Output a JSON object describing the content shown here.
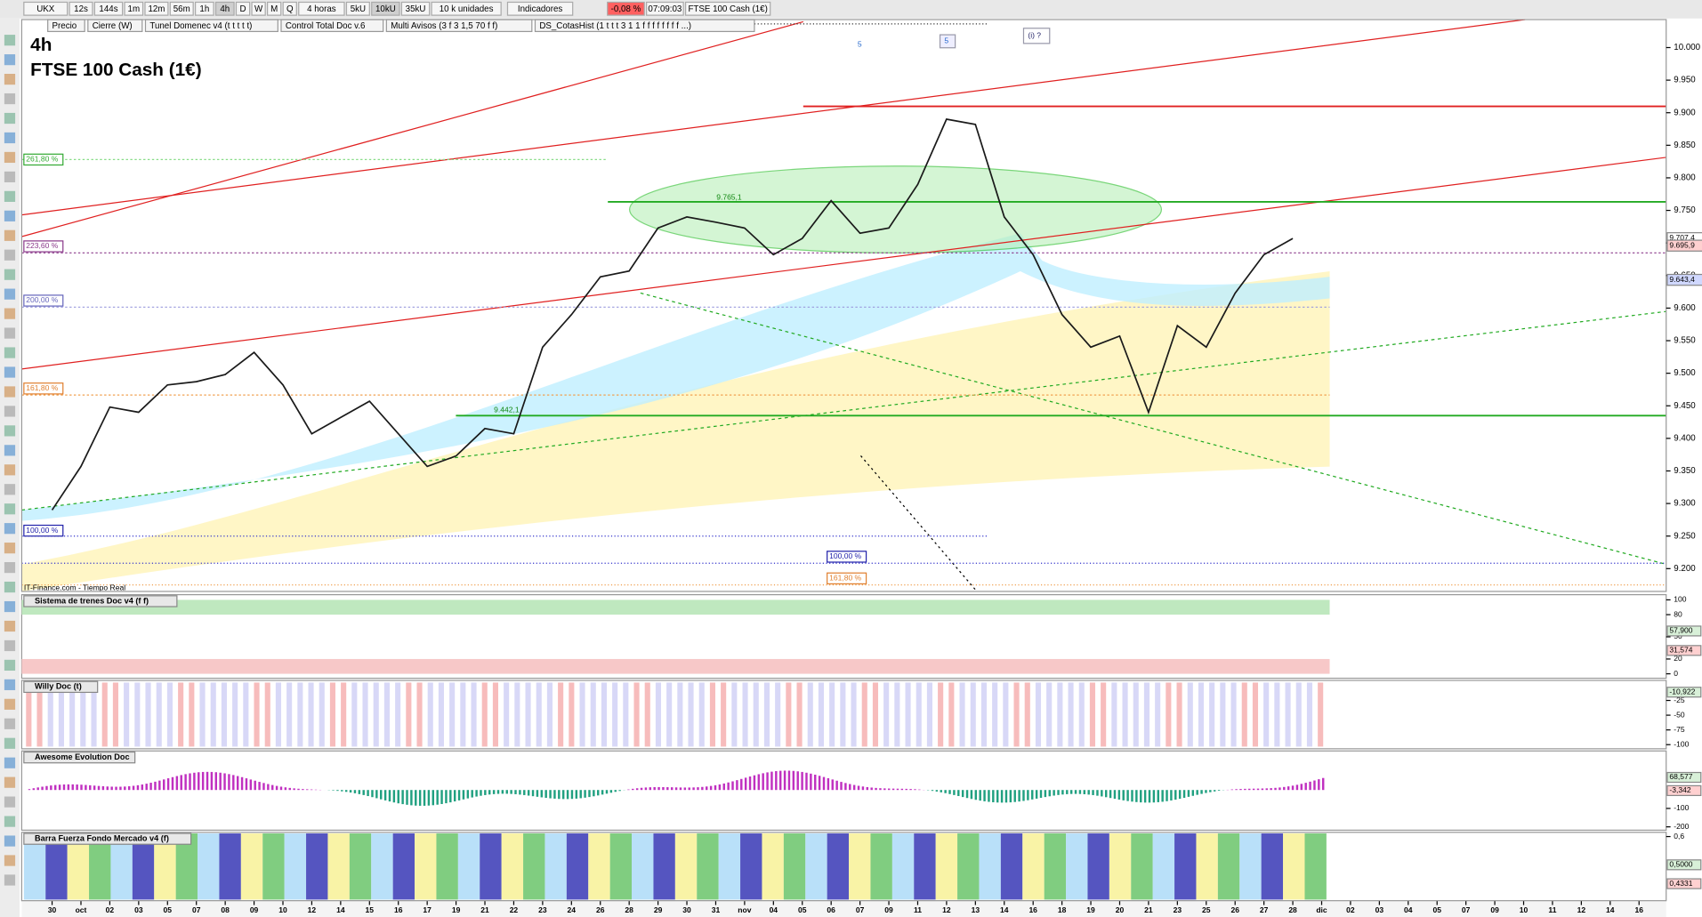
{
  "toolbar": {
    "symbol": "UKX",
    "timeframes": [
      "12s",
      "144s",
      "1m",
      "12m",
      "56m",
      "1h",
      "4h",
      "D",
      "W",
      "M",
      "Q"
    ],
    "period": "4 horas",
    "units": [
      "5kU",
      "10kU",
      "35kU"
    ],
    "unit_select": "10 k unidades",
    "indicators": "Indicadores",
    "change": "-0,08 %",
    "time": "07:09:03",
    "instrument": "FTSE 100 Cash (1€)"
  },
  "indicator_tabs": [
    "Precio",
    "Cierre (W)",
    "Tunel Domenec v4 (t t t t t)",
    "Control Total Doc v.6",
    "Multi Avisos (3 f 3 1,5 70 f f)",
    "DS_CotasHist (1 t t t 3 1 1 f f f f f f f f ...)"
  ],
  "chart_data": {
    "type": "line",
    "timeframe": "4h",
    "title": "FTSE 100 Cash (1€)",
    "source": "IT-Finance.com - Tiempo Real",
    "categories": [
      "30",
      "oct",
      "02",
      "03",
      "05",
      "07",
      "08",
      "09",
      "10",
      "12",
      "14",
      "15",
      "16",
      "17",
      "19",
      "21",
      "22",
      "23",
      "24",
      "26",
      "28",
      "29",
      "30",
      "31",
      "nov",
      "04",
      "05",
      "06",
      "07",
      "09",
      "11",
      "12",
      "13",
      "14",
      "16",
      "18",
      "19",
      "20",
      "21",
      "23",
      "25",
      "26",
      "27",
      "28",
      "dic",
      "02",
      "03",
      "04",
      "05",
      "07",
      "09",
      "10",
      "11",
      "12",
      "14",
      "16"
    ],
    "values": [
      9290,
      9357,
      9448,
      9440,
      9482,
      9487,
      9498,
      9532,
      9482,
      9407,
      9432,
      9457,
      9407,
      9357,
      9373,
      9415,
      9407,
      9540,
      9590,
      9648,
      9657,
      9723,
      9740,
      9732,
      9723,
      9682,
      9707,
      9765,
      9715,
      9723,
      9790,
      9890,
      9882,
      9740,
      9682,
      9590,
      9540,
      9557,
      9440,
      9573,
      9540,
      9623,
      9682,
      9707,
      null,
      null,
      null,
      null,
      null,
      null,
      null,
      null,
      null,
      null,
      null,
      null
    ],
    "color": "#1a1a1a",
    "ylim": [
      9165,
      10043
    ],
    "yticks": [
      {
        "value": 10000,
        "label": "10.000"
      },
      {
        "value": 9950,
        "label": "9.950"
      },
      {
        "value": 9900,
        "label": "9.900"
      },
      {
        "value": 9850,
        "label": "9.850"
      },
      {
        "value": 9800,
        "label": "9.800"
      },
      {
        "value": 9750,
        "label": "9.750"
      },
      {
        "value": 9700,
        "label": "9.700"
      },
      {
        "value": 9650,
        "label": "9.650"
      },
      {
        "value": 9600,
        "label": "9.600"
      },
      {
        "value": 9550,
        "label": "9.550"
      },
      {
        "value": 9500,
        "label": "9.500"
      },
      {
        "value": 9450,
        "label": "9.450"
      },
      {
        "value": 9400,
        "label": "9.400"
      },
      {
        "value": 9350,
        "label": "9.350"
      },
      {
        "value": 9300,
        "label": "9.300"
      },
      {
        "value": 9250,
        "label": "9.250"
      },
      {
        "value": 9200,
        "label": "9.200"
      }
    ],
    "price_tags": [
      {
        "value": 9707.4,
        "label": "9.707,4",
        "color": "#ffffff"
      },
      {
        "value": 9695.9,
        "label": "9.695,9",
        "color": "#ffd0d0"
      },
      {
        "value": 9643.4,
        "label": "9.643,4",
        "color": "#d0d8ff"
      }
    ],
    "fib_labels": [
      "261,80 %",
      "223,60 %",
      "200,00 %",
      "161,80 %",
      "100,00 %",
      "100,00 %",
      "161,80 %"
    ],
    "price_notes": [
      "9.765,1",
      "9.442,1"
    ],
    "wave_labels": [
      "5",
      "5",
      "(i) ?"
    ]
  },
  "panels": [
    {
      "title": "Sistema de trenes Doc v4 (f f)",
      "ylim": [
        -6,
        107
      ],
      "yticks": [
        100,
        80,
        50,
        20,
        0
      ],
      "tags": [
        {
          "value": 57.9,
          "label": "57,900"
        },
        {
          "value": 31.574,
          "label": "31,574"
        }
      ]
    },
    {
      "title": "Willy Doc (t)",
      "ylim": [
        -107,
        9
      ],
      "yticks": [
        -25,
        -50,
        -75,
        -100
      ],
      "tags": [
        {
          "value": -10.922,
          "label": "-10,922"
        }
      ]
    },
    {
      "title": "Awesome Evolution Doc",
      "ylim": [
        -218,
        212
      ],
      "yticks": [
        -100,
        -200
      ],
      "tags": [
        {
          "value": 68.577,
          "label": "68,577"
        },
        {
          "value": -3.342,
          "label": "-3,342"
        }
      ]
    },
    {
      "title": "Barra Fuerza Fondo Mercado v4 (f)",
      "ylim": [
        0.373,
        0.615
      ],
      "yticks": [
        {
          "value": 0.6,
          "label": "0,6"
        }
      ],
      "tags": [
        {
          "value": 0.5,
          "label": "0,5000"
        },
        {
          "value": 0.4331,
          "label": "0,4331"
        }
      ]
    }
  ]
}
